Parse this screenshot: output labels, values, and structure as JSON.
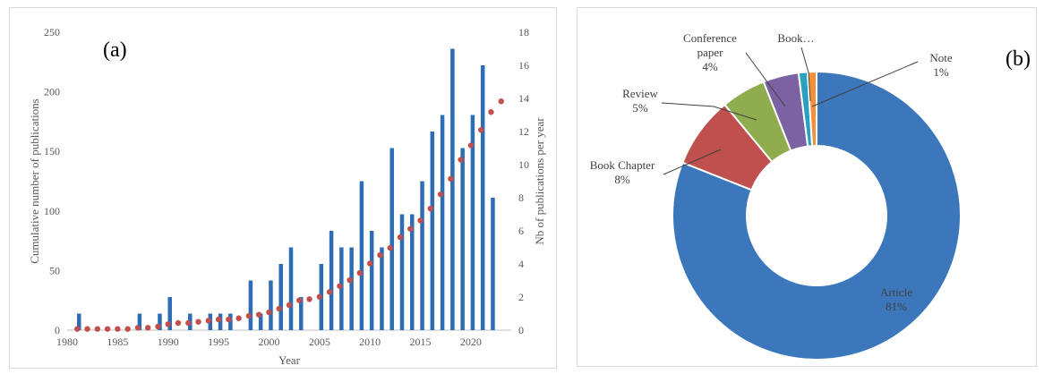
{
  "chart_data": [
    {
      "type": "bar+scatter",
      "panel_label": "(a)",
      "xlabel": "Year",
      "ylabel_left": "Cumulative number of publications",
      "ylabel_right": "Nb of publications per year",
      "xlim": [
        1980,
        2024
      ],
      "ylim_left": [
        0,
        250
      ],
      "ylim_right": [
        0,
        18
      ],
      "x_ticks": [
        1980,
        1985,
        1990,
        1995,
        2000,
        2005,
        2010,
        2015,
        2020
      ],
      "y_left_ticks": [
        0,
        50,
        100,
        150,
        200,
        250
      ],
      "y_right_ticks": [
        0,
        2,
        4,
        6,
        8,
        10,
        12,
        14,
        16,
        18
      ],
      "grid": false,
      "bar_color": "#2e6db4",
      "dot_color": "#c0504d",
      "bars_per_year": {
        "axis": "right",
        "x": [
          1981,
          1987,
          1989,
          1990,
          1992,
          1994,
          1995,
          1996,
          1998,
          1999,
          2000,
          2001,
          2002,
          2003,
          2005,
          2006,
          2007,
          2008,
          2009,
          2010,
          2011,
          2012,
          2013,
          2014,
          2015,
          2016,
          2017,
          2018,
          2019,
          2020,
          2021,
          2022
        ],
        "values": [
          1,
          1,
          1,
          2,
          1,
          1,
          1,
          1,
          3,
          1,
          3,
          4,
          5,
          2,
          4,
          6,
          5,
          5,
          9,
          6,
          5,
          11,
          7,
          7,
          9,
          12,
          13,
          17,
          11,
          13,
          16,
          8
        ]
      },
      "cumulative": {
        "axis": "left",
        "x": [
          1981,
          1982,
          1983,
          1984,
          1985,
          1986,
          1987,
          1988,
          1989,
          1990,
          1991,
          1992,
          1993,
          1994,
          1995,
          1996,
          1997,
          1998,
          1999,
          2000,
          2001,
          2002,
          2003,
          2004,
          2005,
          2006,
          2007,
          2008,
          2009,
          2010,
          2011,
          2012,
          2013,
          2014,
          2015,
          2016,
          2017,
          2018,
          2019,
          2020,
          2021,
          2022,
          2023
        ],
        "values": [
          1,
          1,
          1,
          1,
          1,
          1,
          2,
          2,
          3,
          5,
          6,
          6,
          7,
          8,
          9,
          9,
          10,
          12,
          13,
          15,
          18,
          21,
          25,
          26,
          28,
          32,
          37,
          42,
          48,
          56,
          63,
          69,
          78,
          85,
          92,
          102,
          114,
          127,
          143,
          155,
          168,
          183,
          192
        ]
      }
    },
    {
      "type": "pie",
      "donut": true,
      "panel_label": "(b)",
      "slices": [
        {
          "label": "Article",
          "pct": "81%",
          "value": 81,
          "color": "#3d77bb"
        },
        {
          "label": "Book Chapter",
          "pct": "8%",
          "value": 8,
          "color": "#c0504d"
        },
        {
          "label": "Review",
          "pct": "5%",
          "value": 5,
          "color": "#8fad4f"
        },
        {
          "label": "Conference paper",
          "pct": "4%",
          "value": 4,
          "color": "#7b62a3"
        },
        {
          "label": "Book…",
          "pct": "",
          "value": 1,
          "color": "#2aa0c0"
        },
        {
          "label": "Note",
          "pct": "1%",
          "value": 1,
          "color": "#f3913b"
        }
      ]
    }
  ]
}
